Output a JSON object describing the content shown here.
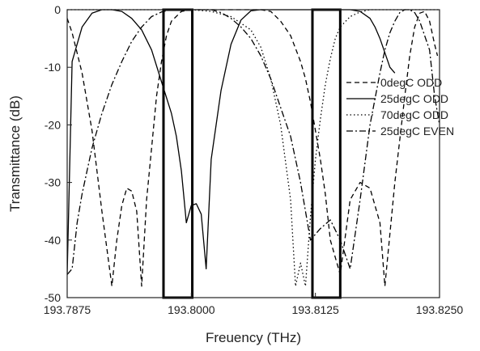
{
  "chart_data": {
    "type": "line",
    "title": "",
    "xlabel": "Freuency (THz)",
    "ylabel": "Transmittance (dB)",
    "xlim": [
      193.7875,
      193.825
    ],
    "ylim": [
      -50,
      0
    ],
    "xticks": [
      193.7875,
      193.8,
      193.8125,
      193.825
    ],
    "xtick_labels": [
      "193.7875",
      "193.8000",
      "193.8125",
      "193.8250"
    ],
    "yticks": [
      0,
      -10,
      -20,
      -30,
      -40,
      -50
    ],
    "ytick_labels": [
      "0",
      "-10",
      "-20",
      "-30",
      "-40",
      "-50"
    ],
    "grid": false,
    "legend_position": "right",
    "series": [
      {
        "name": "0degC ODD",
        "dash": "dashed",
        "color": "#000000",
        "x": [
          193.7875,
          193.788,
          193.789,
          193.79,
          193.791,
          193.792,
          193.7925,
          193.793,
          193.7935,
          193.794,
          193.7945,
          193.795,
          193.7955,
          193.796,
          193.7965,
          193.797,
          193.7975,
          193.798,
          193.799,
          193.8,
          193.801,
          193.802,
          193.803,
          193.804,
          193.805,
          193.806,
          193.807,
          193.808,
          193.809,
          193.81,
          193.811,
          193.8115,
          193.812,
          193.8125,
          193.813,
          193.8135,
          193.814,
          193.815,
          193.816,
          193.817,
          193.818,
          193.819,
          193.8195,
          193.8205,
          193.8215,
          193.822,
          193.8225,
          193.823,
          193.8235,
          193.824,
          193.8245,
          193.8248
        ],
        "y": [
          -1.5,
          -4,
          -11,
          -21,
          -35,
          -48,
          -40,
          -34,
          -31,
          -31.5,
          -35,
          -48,
          -33,
          -24,
          -15,
          -9,
          -4.5,
          -2,
          -0.3,
          0,
          0,
          0,
          0,
          0,
          0,
          0,
          0,
          -0.3,
          -2,
          -4.5,
          -9,
          -12,
          -16,
          -21,
          -26,
          -32,
          -40,
          -46,
          -33,
          -30,
          -31,
          -37,
          -48,
          -30,
          -15,
          -8,
          -3,
          -0.6,
          -0.3,
          -2,
          -6,
          -8
        ]
      },
      {
        "name": "25degC ODD",
        "dash": "solid",
        "color": "#000000",
        "x": [
          193.7875,
          193.788,
          193.789,
          193.79,
          193.791,
          193.792,
          193.793,
          193.794,
          193.795,
          193.796,
          193.797,
          193.798,
          193.7985,
          193.799,
          193.7995,
          193.8,
          193.8005,
          193.801,
          193.8015,
          193.802,
          193.803,
          193.804,
          193.805,
          193.806,
          193.807,
          193.808,
          193.809,
          193.81,
          193.811,
          193.812,
          193.813,
          193.814,
          193.815,
          193.816,
          193.817,
          193.818,
          193.8185,
          193.819,
          193.82,
          193.8205
        ],
        "y": [
          -46,
          -9,
          -3,
          -0.6,
          0,
          0,
          -0.3,
          -1.5,
          -3.5,
          -7,
          -12.5,
          -18,
          -22,
          -28,
          -37,
          -34,
          -33.7,
          -35.5,
          -45,
          -26,
          -14,
          -6,
          -1.8,
          -0.2,
          0,
          0,
          0,
          0,
          0,
          0,
          0,
          0,
          0,
          0,
          -0.3,
          -1.5,
          -3,
          -5,
          -10,
          -11
        ]
      },
      {
        "name": "70degC ODD",
        "dash": "dotted",
        "color": "#000000",
        "x": [
          193.7875,
          193.79,
          193.795,
          193.8,
          193.802,
          193.804,
          193.806,
          193.807,
          193.808,
          193.809,
          193.81,
          193.8105,
          193.811,
          193.8115,
          193.812,
          193.8125,
          193.813,
          193.8135,
          193.814,
          193.8145,
          193.815,
          193.816,
          193.817,
          193.818,
          193.82,
          193.825
        ],
        "y": [
          0,
          0,
          0,
          0,
          -0.3,
          -1.2,
          -3.5,
          -6.5,
          -12,
          -20,
          -33,
          -48,
          -44,
          -48,
          -36,
          -26,
          -19,
          -13,
          -8.5,
          -5,
          -3,
          -1.2,
          -0.4,
          0,
          0,
          0
        ]
      },
      {
        "name": "25degC EVEN",
        "dash": "dashdot",
        "color": "#000000",
        "x": [
          193.7875,
          193.788,
          193.7885,
          193.789,
          193.7895,
          193.79,
          193.791,
          193.792,
          193.793,
          193.794,
          193.795,
          193.796,
          193.797,
          193.798,
          193.799,
          193.8,
          193.801,
          193.802,
          193.803,
          193.804,
          193.805,
          193.806,
          193.807,
          193.808,
          193.809,
          193.81,
          193.811,
          193.812,
          193.813,
          193.814,
          193.815,
          193.816,
          193.817,
          193.818,
          193.819,
          193.8195,
          193.82,
          193.8205,
          193.821,
          193.8215,
          193.822,
          193.8225,
          193.823,
          193.824,
          193.8245,
          193.825
        ],
        "y": [
          -46,
          -45,
          -37,
          -32,
          -28,
          -24,
          -18,
          -13,
          -9,
          -5.5,
          -3,
          -1.2,
          -0.4,
          0,
          0,
          0,
          0,
          0,
          -0.5,
          -1.5,
          -3,
          -5,
          -8,
          -12,
          -17,
          -22,
          -30,
          -40,
          -38,
          -36.5,
          -40,
          -45,
          -33,
          -20,
          -11,
          -7,
          -4,
          -2,
          -0.5,
          0,
          0,
          -0.5,
          -2,
          -7,
          -15,
          -20
        ]
      }
    ],
    "annotations": [
      {
        "type": "rectangle",
        "x0": 193.7972,
        "x1": 193.8001,
        "y0": -50,
        "y1": 0
      },
      {
        "type": "rectangle",
        "x0": 193.8122,
        "x1": 193.815,
        "y0": -50,
        "y1": 0
      }
    ]
  }
}
